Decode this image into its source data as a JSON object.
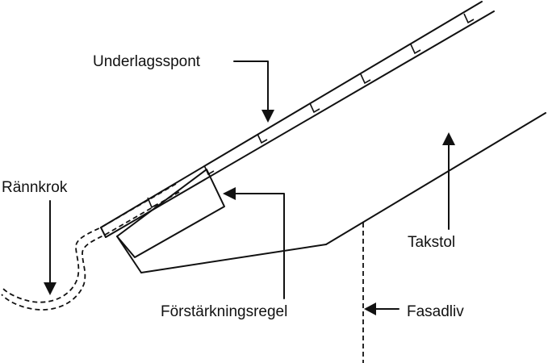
{
  "labels": {
    "underlagsspont": "Underlagsspont",
    "rannkrok": "Rännkrok",
    "forstarkningsregel": "Förstärkningsregel",
    "takstol": "Takstol",
    "fasadliv": "Fasadliv"
  },
  "colors": {
    "line": "#111111",
    "background": "#ffffff"
  }
}
